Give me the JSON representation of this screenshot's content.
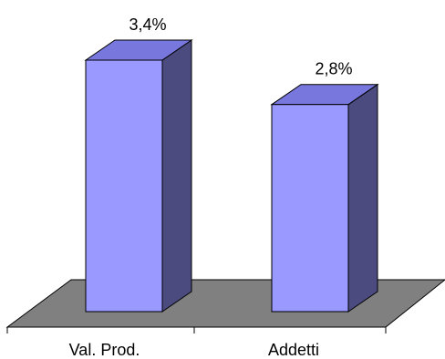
{
  "chart_data": {
    "type": "bar",
    "style": "3d-column",
    "categories": [
      "Val. Prod.",
      "Addetti"
    ],
    "values": [
      3.4,
      2.8
    ],
    "data_labels": [
      "3,4%",
      "2,8%"
    ],
    "unit": "%",
    "ylim": [
      0,
      3.4
    ],
    "grid": false,
    "legend": "none",
    "title": "",
    "xlabel": "",
    "ylabel": "",
    "colors": {
      "bar_front": "#9999ff",
      "bar_top": "#7777dd",
      "bar_side": "#4b4b80",
      "floor": "#808080",
      "outline": "#000000",
      "background": "#ffffff"
    }
  }
}
